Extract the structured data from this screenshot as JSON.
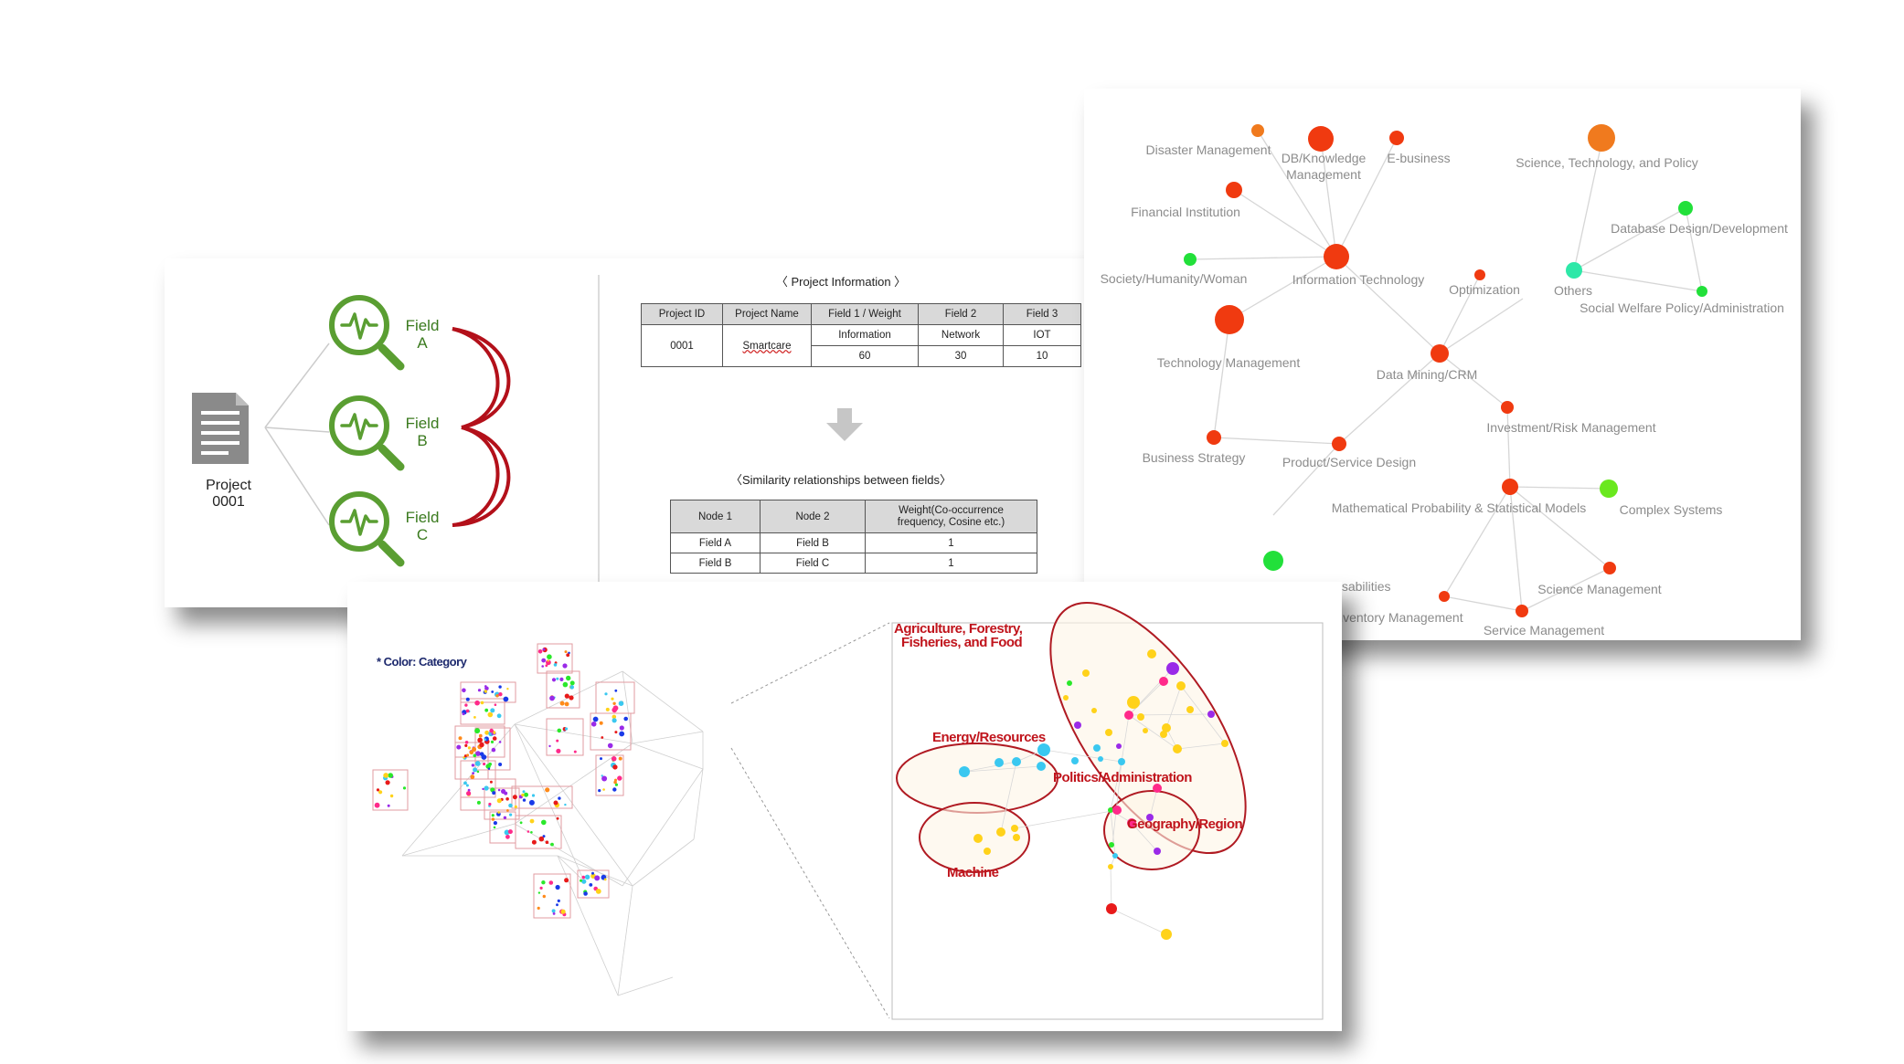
{
  "project_panel": {
    "project_label_line1": "Project",
    "project_label_line2": "0001",
    "fields": [
      {
        "line1": "Field",
        "line2": "A"
      },
      {
        "line1": "Field",
        "line2": "B"
      },
      {
        "line1": "Field",
        "line2": "C"
      }
    ],
    "icon_color": "#5a9e32",
    "bracket_color": "#b3101a"
  },
  "project_info": {
    "title": "〈 Project Information 〉",
    "headers": [
      "Project ID",
      "Project Name",
      "Field 1 / Weight",
      "Field 2",
      "Field 3"
    ],
    "row": {
      "id": "0001",
      "name": "Smartcare",
      "field1_name": "Information",
      "field1_weight": "60",
      "field2_name": "Network",
      "field2_weight": "30",
      "field3_name": "IOT",
      "field3_weight": "10"
    }
  },
  "similarity": {
    "title": "〈Similarity relationships between fields〉",
    "headers": [
      "Node 1",
      "Node 2",
      "Weight(Co-occurrence frequency, Cosine etc.)"
    ],
    "rows": [
      [
        "Field A",
        "Field B",
        "1"
      ],
      [
        "Field B",
        "Field C",
        "1"
      ]
    ]
  },
  "network": {
    "nodes": [
      {
        "id": "disaster",
        "label": "Disaster Management",
        "color": "#f07a1e"
      },
      {
        "id": "db",
        "label_line1": "DB/Knowledge",
        "label_line2": "Management",
        "color": "#f03a10"
      },
      {
        "id": "ebusiness",
        "label": "E-business",
        "color": "#f03a10"
      },
      {
        "id": "science",
        "label": "Science, Technology, and Policy",
        "color": "#f07a1e"
      },
      {
        "id": "financial",
        "label": "Financial Institution",
        "color": "#f03a10"
      },
      {
        "id": "dbdesign",
        "label": "Database Design/Development",
        "color": "#22e03a"
      },
      {
        "id": "society",
        "label": "Society/Humanity/Woman",
        "color": "#22e03a"
      },
      {
        "id": "infotech",
        "label": "Information Technology",
        "color": "#f03a10"
      },
      {
        "id": "optimization",
        "label": "Optimization",
        "color": "#f03a10"
      },
      {
        "id": "others",
        "label": "Others",
        "color": "#2ee8a8"
      },
      {
        "id": "socialwelfare",
        "label": "Social Welfare Policy/Administration",
        "color": "#22e03a"
      },
      {
        "id": "techmgmt",
        "label": "Technology Management",
        "color": "#f03a10"
      },
      {
        "id": "datamining",
        "label": "Data Mining/CRM",
        "color": "#f03a10"
      },
      {
        "id": "investment",
        "label": "Investment/Risk Management",
        "color": "#f03a10"
      },
      {
        "id": "business",
        "label": "Business Strategy",
        "color": "#f03a10"
      },
      {
        "id": "product",
        "label": "Product/Service Design",
        "color": "#f03a10"
      },
      {
        "id": "math",
        "label": "Mathematical Probability & Statistical Models",
        "color": "#f03a10"
      },
      {
        "id": "complex",
        "label": "Complex Systems",
        "color": "#6ae81e"
      },
      {
        "id": "welfare",
        "label": "Welfare for Persons with Disabilities",
        "color": "#22e03a"
      },
      {
        "id": "sciencemgmt",
        "label": "Science Management",
        "color": "#f03a10"
      },
      {
        "id": "inventory",
        "label": "Inventory Management",
        "color": "#f03a10"
      },
      {
        "id": "service",
        "label": "Service Management",
        "color": "#f03a10"
      }
    ]
  },
  "category_map": {
    "legend": "* Color: Category",
    "categories": [
      {
        "label_line1": "Agriculture, Forestry,",
        "label_line2": "Fisheries, and Food"
      },
      {
        "label": "Energy/Resources"
      },
      {
        "label": "Politics/Administration"
      },
      {
        "label": "Geography/Region"
      },
      {
        "label": "Machine"
      }
    ]
  }
}
